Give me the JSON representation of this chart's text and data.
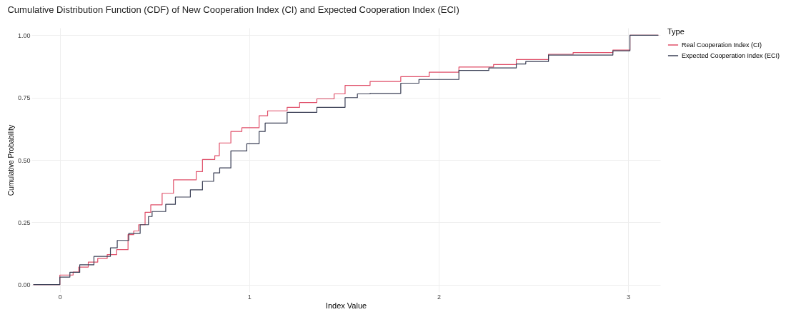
{
  "chart_data": {
    "type": "step",
    "title": "Cumulative Distribution Function (CDF) of New Cooperation Index (CI) and Expected Cooperation Index (ECI)",
    "xlabel": "Index Value",
    "ylabel": "Cumulative Probability",
    "legend_title": "Type",
    "legend": "right",
    "grid": true,
    "xlim": [
      -0.15,
      3.17
    ],
    "xticks": [
      0,
      1,
      2,
      3
    ],
    "ylim": [
      -0.03,
      1.03
    ],
    "yticks": [
      {
        "value": 0,
        "label": "0.00"
      },
      {
        "value": 0.25,
        "label": "0.25"
      },
      {
        "value": 0.5,
        "label": "0.50"
      },
      {
        "value": 0.75,
        "label": "0.75"
      },
      {
        "value": 1,
        "label": "1.00"
      }
    ],
    "series": [
      {
        "name": "Real Cooperation Index (CI)",
        "color": "#e0506a",
        "x": [
          -0.14,
          0,
          0.07,
          0.1,
          0.15,
          0.2,
          0.25,
          0.3,
          0.36,
          0.39,
          0.416,
          0.45,
          0.48,
          0.54,
          0.6,
          0.72,
          0.753,
          0.818,
          0.842,
          0.903,
          0.961,
          1.052,
          1.097,
          1.2,
          1.266,
          1.357,
          1.448,
          1.506,
          1.638,
          1.8,
          1.95,
          2.107,
          2.29,
          2.41,
          2.58,
          2.71,
          2.92,
          3.01,
          3.16
        ],
        "values": [
          0,
          0.038,
          0.05,
          0.07,
          0.09,
          0.105,
          0.12,
          0.14,
          0.2,
          0.215,
          0.24,
          0.29,
          0.32,
          0.366,
          0.42,
          0.453,
          0.502,
          0.517,
          0.568,
          0.614,
          0.629,
          0.677,
          0.697,
          0.711,
          0.73,
          0.745,
          0.765,
          0.799,
          0.815,
          0.834,
          0.852,
          0.873,
          0.883,
          0.903,
          0.924,
          0.931,
          0.941,
          1,
          1
        ]
      },
      {
        "name": "Expected Cooperation Index (ECI)",
        "color": "#3a3f55",
        "x": [
          -0.14,
          0,
          0.053,
          0.105,
          0.18,
          0.267,
          0.303,
          0.364,
          0.424,
          0.468,
          0.487,
          0.559,
          0.61,
          0.689,
          0.753,
          0.812,
          0.844,
          0.903,
          0.987,
          1.052,
          1.084,
          1.2,
          1.357,
          1.506,
          1.571,
          1.638,
          1.8,
          1.896,
          2.107,
          2.265,
          2.41,
          2.46,
          2.58,
          2.92,
          3.01,
          3.16
        ],
        "values": [
          0,
          0.03,
          0.049,
          0.079,
          0.113,
          0.147,
          0.177,
          0.205,
          0.24,
          0.273,
          0.293,
          0.322,
          0.351,
          0.38,
          0.414,
          0.448,
          0.468,
          0.536,
          0.565,
          0.614,
          0.648,
          0.691,
          0.711,
          0.75,
          0.765,
          0.767,
          0.808,
          0.823,
          0.859,
          0.869,
          0.885,
          0.895,
          0.921,
          0.938,
          1,
          1
        ]
      }
    ]
  }
}
